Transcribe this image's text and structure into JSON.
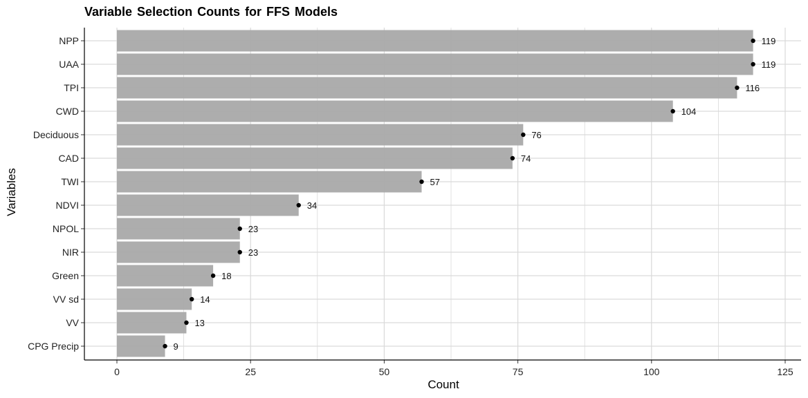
{
  "chart_data": {
    "type": "bar",
    "orientation": "horizontal",
    "title": "Variable Selection Counts for FFS Models",
    "xlabel": "Count",
    "ylabel": "Variables",
    "xlim": [
      0,
      125
    ],
    "x_ticks": [
      0,
      25,
      50,
      75,
      100,
      125
    ],
    "grid": true,
    "legend": "none",
    "categories": [
      "NPP",
      "UAA",
      "TPI",
      "CWD",
      "Deciduous",
      "CAD",
      "TWI",
      "NDVI",
      "NPOL",
      "NIR",
      "Green",
      "VV sd",
      "VV",
      "CPG Precip"
    ],
    "values": [
      119,
      119,
      116,
      104,
      76,
      74,
      57,
      34,
      23,
      23,
      18,
      14,
      13,
      9
    ],
    "bar_color": "#aaaaaa",
    "point_color": "#000000"
  }
}
